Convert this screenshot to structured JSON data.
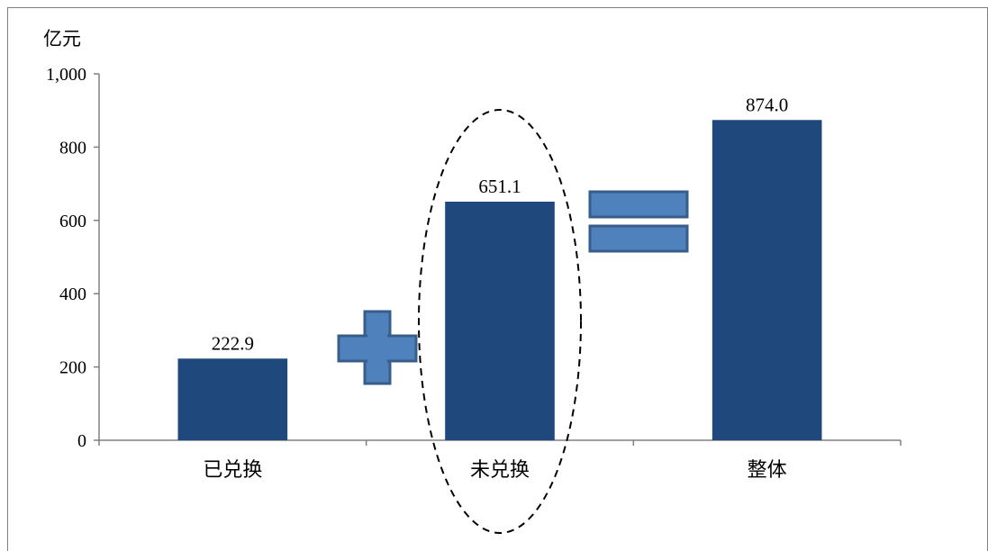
{
  "chart_data": {
    "type": "bar",
    "unit_label": "亿元",
    "categories": [
      "已兑换",
      "未兑换",
      "整体"
    ],
    "values": [
      222.9,
      651.1,
      874.0
    ],
    "value_labels": [
      "222.9",
      "651.1",
      "874.0"
    ],
    "ylim": [
      0,
      1000
    ],
    "yticks": [
      0,
      200,
      400,
      600,
      800,
      1000
    ],
    "ytick_labels": [
      "0",
      "200",
      "400",
      "600",
      "800",
      "1,000"
    ],
    "highlighted_category": "未兑换",
    "annotations": [
      "plus-sign",
      "equals-sign"
    ],
    "colors": {
      "bar": "#1f497d",
      "symbol_fill": "#4f81bd",
      "symbol_stroke": "#385d8a"
    },
    "grid": false,
    "legend": "none"
  }
}
